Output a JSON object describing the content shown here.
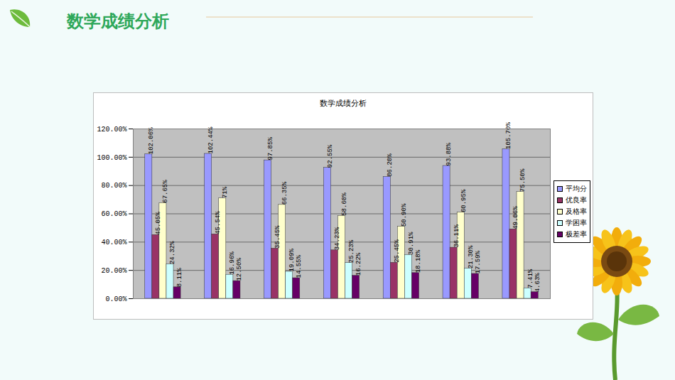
{
  "slide_title": "数学成绩分析",
  "chart_data": {
    "type": "bar",
    "title": "数学成绩分析",
    "categories": [
      null,
      null,
      null,
      null,
      null,
      null,
      null
    ],
    "series": [
      {
        "name": "平均分",
        "color": "#9999ff",
        "values": [
          102.06,
          102.44,
          97.85,
          92.55,
          86.2,
          93.88,
          105.7
        ],
        "value_labels": [
          "102.06%",
          "102.44%",
          "97.85%",
          "92.55%",
          "86.20%",
          "93.88%",
          "105.70%"
        ]
      },
      {
        "name": "优良率",
        "color": "#993366",
        "values": [
          45.05,
          45.54,
          35.45,
          34.23,
          25.45,
          36.11,
          49.06
        ],
        "value_labels": [
          "45.05%",
          "45.54%",
          "35.45%",
          "34.23%",
          "25.45%",
          "36.11%",
          "49.06%"
        ]
      },
      {
        "name": "及格率",
        "color": "#ffffcc",
        "values": [
          67.65,
          71,
          66.35,
          58.6,
          50.9,
          60.95,
          75.5
        ],
        "value_labels": [
          "67.65%",
          "71%",
          "66.35%",
          "58.60%",
          "50.90%",
          "60.95%",
          "75.50%"
        ]
      },
      {
        "name": "学困率",
        "color": "#ccffff",
        "values": [
          24.32,
          16.96,
          19.09,
          25.23,
          30.91,
          21.3,
          7.41
        ],
        "value_labels": [
          "24.32%",
          "16.96%",
          "19.09%",
          "25.23%",
          "30.91%",
          "21.30%",
          "7.41%"
        ]
      },
      {
        "name": "极差率",
        "color": "#660066",
        "values": [
          8.11,
          12.5,
          14.55,
          16.22,
          18.18,
          17.59,
          4.63
        ],
        "value_labels": [
          "8.11%",
          "12.50%",
          "14.55%",
          "16.22%",
          "18.18%",
          "17.59%",
          "4.63%"
        ]
      }
    ],
    "ylim": [
      0,
      120
    ],
    "yticks": [
      {
        "value": 0,
        "label": "0.00%"
      },
      {
        "value": 20,
        "label": "20.00%"
      },
      {
        "value": 40,
        "label": "40.00%"
      },
      {
        "value": 60,
        "label": "60.00%"
      },
      {
        "value": 80,
        "label": "80.00%"
      },
      {
        "value": 100,
        "label": "100.00%"
      },
      {
        "value": 120,
        "label": "120.00%"
      }
    ],
    "grid": true,
    "legend": "right",
    "data_labels": true
  }
}
